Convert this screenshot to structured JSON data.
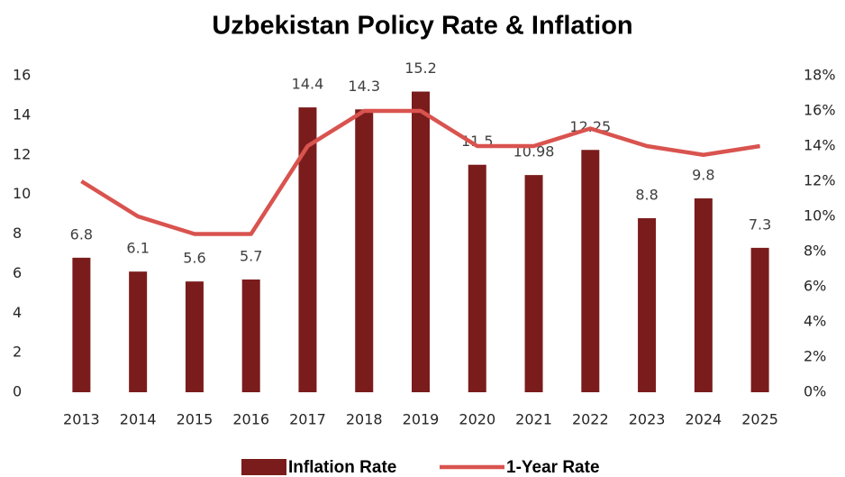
{
  "chart_data": {
    "type": "bar",
    "title": "Uzbekistan Policy Rate & Inflation",
    "categories": [
      "2013",
      "2014",
      "2015",
      "2016",
      "2017",
      "2018",
      "2019",
      "2020",
      "2021",
      "2022",
      "2023",
      "2024",
      "2025"
    ],
    "series": [
      {
        "name": "Inflation Rate",
        "type": "bar",
        "color": "#7b1c1c",
        "values": [
          6.8,
          6.1,
          5.6,
          5.7,
          14.4,
          14.3,
          15.2,
          11.5,
          10.98,
          12.25,
          8.8,
          9.8,
          7.3
        ]
      },
      {
        "name": "1-Year Rate",
        "type": "line",
        "axis": "y2",
        "color": "#d9534f",
        "values": [
          12,
          10,
          9,
          9,
          14,
          16,
          16,
          14,
          14,
          15,
          14,
          13.5,
          14
        ]
      }
    ],
    "ylim": [
      0,
      16
    ],
    "yticks": [
      0,
      2,
      4,
      6,
      8,
      10,
      12,
      14,
      16
    ],
    "y2lim": [
      0,
      18
    ],
    "y2ticks": [
      {
        "value": 0,
        "label": "0%"
      },
      {
        "value": 2,
        "label": "2%"
      },
      {
        "value": 4,
        "label": "4%"
      },
      {
        "value": 6,
        "label": "6%"
      },
      {
        "value": 8,
        "label": "8%"
      },
      {
        "value": 10,
        "label": "10%"
      },
      {
        "value": 12,
        "label": "12%"
      },
      {
        "value": 14,
        "label": "14%"
      },
      {
        "value": 16,
        "label": "16%"
      },
      {
        "value": 18,
        "label": "18%"
      }
    ],
    "grid": false,
    "legend": "bottom"
  }
}
